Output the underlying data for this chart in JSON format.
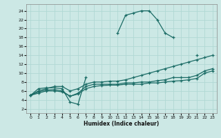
{
  "xlabel": "Humidex (Indice chaleur)",
  "background_color": "#cce8e5",
  "grid_color": "#b0d8d4",
  "line_color": "#1a6b65",
  "xlim": [
    -0.5,
    23.5
  ],
  "ylim": [
    1.0,
    25.5
  ],
  "xticks": [
    0,
    1,
    2,
    3,
    4,
    5,
    6,
    7,
    8,
    9,
    10,
    11,
    12,
    13,
    14,
    15,
    16,
    17,
    18,
    19,
    20,
    21,
    22,
    23
  ],
  "yticks": [
    2,
    4,
    6,
    8,
    10,
    12,
    14,
    16,
    18,
    20,
    22,
    24
  ],
  "lines": [
    {
      "segments": [
        {
          "x": [
            0,
            1,
            2,
            3,
            4,
            5,
            6,
            7
          ],
          "y": [
            5,
            6.5,
            6.7,
            6.7,
            6.5,
            3.5,
            3.0,
            9.0
          ]
        },
        {
          "x": [
            11,
            12,
            13,
            14,
            15,
            16,
            17,
            18
          ],
          "y": [
            19.0,
            23.0,
            23.5,
            24.0,
            24.0,
            22.0,
            19.0,
            18.0
          ]
        },
        {
          "x": [
            21
          ],
          "y": [
            14.0
          ]
        }
      ]
    },
    {
      "segments": [
        {
          "x": [
            0,
            1,
            2,
            3,
            4,
            5,
            6,
            7,
            8,
            9,
            10,
            11,
            12,
            13,
            14,
            15,
            16,
            17,
            18,
            19,
            20,
            21,
            22,
            23
          ],
          "y": [
            5.0,
            6.0,
            6.5,
            7.0,
            7.0,
            6.0,
            6.5,
            7.5,
            8.0,
            8.0,
            8.2,
            8.2,
            8.5,
            9.0,
            9.5,
            10.0,
            10.5,
            11.0,
            11.5,
            12.0,
            12.5,
            13.0,
            13.5,
            14.0
          ]
        }
      ]
    },
    {
      "segments": [
        {
          "x": [
            0,
            1,
            2,
            3,
            4,
            5,
            6,
            7,
            8,
            9,
            10,
            11,
            12,
            13,
            14,
            15,
            16,
            17,
            18,
            19,
            20,
            21,
            22,
            23
          ],
          "y": [
            5.0,
            5.8,
            6.2,
            6.3,
            6.0,
            4.8,
            5.5,
            7.0,
            7.5,
            7.5,
            7.5,
            7.5,
            7.8,
            7.8,
            8.0,
            8.0,
            8.3,
            8.5,
            9.0,
            9.0,
            9.0,
            9.5,
            10.5,
            11.0
          ]
        }
      ]
    },
    {
      "segments": [
        {
          "x": [
            0,
            1,
            2,
            3,
            4,
            5,
            6,
            7,
            8,
            9,
            10,
            11,
            12,
            13,
            14,
            15,
            16,
            17,
            18,
            19,
            20,
            21,
            22,
            23
          ],
          "y": [
            5.0,
            5.5,
            6.0,
            6.0,
            5.8,
            4.8,
            5.3,
            6.5,
            7.0,
            7.2,
            7.3,
            7.3,
            7.5,
            7.5,
            7.5,
            7.8,
            7.8,
            8.0,
            8.2,
            8.3,
            8.5,
            8.8,
            10.0,
            10.5
          ]
        }
      ]
    }
  ]
}
